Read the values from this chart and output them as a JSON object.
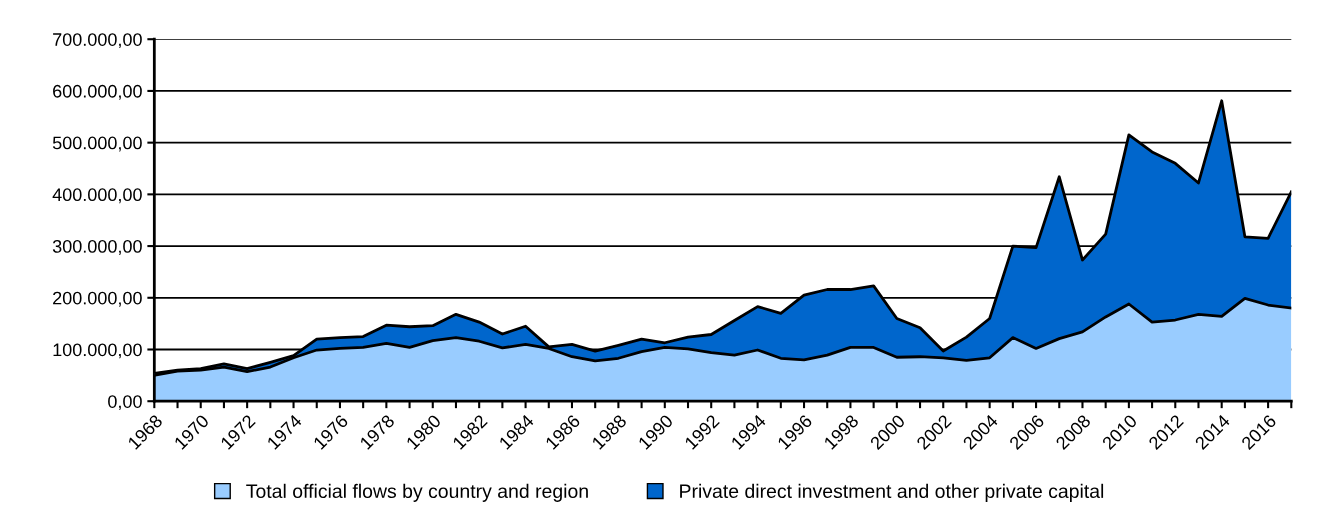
{
  "chart_data": {
    "type": "area",
    "stacked": true,
    "x": [
      1968,
      1969,
      1970,
      1971,
      1972,
      1973,
      1974,
      1975,
      1976,
      1977,
      1978,
      1979,
      1980,
      1981,
      1982,
      1983,
      1984,
      1985,
      1986,
      1987,
      1988,
      1989,
      1990,
      1991,
      1992,
      1993,
      1994,
      1995,
      1996,
      1997,
      1998,
      1999,
      2000,
      2001,
      2002,
      2003,
      2004,
      2005,
      2006,
      2007,
      2008,
      2009,
      2010,
      2011,
      2012,
      2013,
      2014,
      2015,
      2016,
      2017
    ],
    "series": [
      {
        "name": "Total official flows by country and region",
        "color": "#99ccff",
        "values": [
          50000,
          58000,
          60000,
          66000,
          57000,
          66000,
          84000,
          99000,
          102000,
          104000,
          112000,
          104000,
          117000,
          123000,
          116000,
          103000,
          110000,
          102000,
          86000,
          78000,
          83000,
          96000,
          104000,
          101000,
          94000,
          89000,
          99000,
          83000,
          80000,
          89000,
          104000,
          104000,
          85000,
          86000,
          84000,
          79000,
          84000,
          123000,
          102000,
          121000,
          134000,
          163000,
          188000,
          153000,
          157000,
          168000,
          164000,
          199000,
          186000,
          180000
        ]
      },
      {
        "name": "Private direct investment and other private capital",
        "color": "#0066cc",
        "values": [
          4000,
          2000,
          3000,
          6000,
          6000,
          9000,
          4000,
          21000,
          21000,
          21000,
          35000,
          40000,
          29000,
          45000,
          37000,
          27000,
          35000,
          3000,
          24000,
          19000,
          25000,
          24000,
          9000,
          23000,
          35000,
          67000,
          84000,
          87000,
          125000,
          127000,
          112000,
          119000,
          75000,
          56000,
          13000,
          45000,
          76000,
          177000,
          195000,
          313000,
          139000,
          160000,
          327000,
          329000,
          303000,
          254000,
          417000,
          119000,
          129000,
          225000
        ]
      }
    ],
    "xlim": [
      1968,
      2017
    ],
    "xticks": [
      1968,
      {
        "value": 1969,
        "label": null
      },
      1970,
      {
        "value": 1971,
        "label": null
      },
      1972,
      {
        "value": 1973,
        "label": null
      },
      1974,
      {
        "value": 1975,
        "label": null
      },
      1976,
      {
        "value": 1977,
        "label": null
      },
      1978,
      {
        "value": 1979,
        "label": null
      },
      1980,
      {
        "value": 1981,
        "label": null
      },
      1982,
      {
        "value": 1983,
        "label": null
      },
      1984,
      {
        "value": 1985,
        "label": null
      },
      1986,
      {
        "value": 1987,
        "label": null
      },
      1988,
      {
        "value": 1989,
        "label": null
      },
      1990,
      {
        "value": 1991,
        "label": null
      },
      1992,
      {
        "value": 1993,
        "label": null
      },
      1994,
      {
        "value": 1995,
        "label": null
      },
      1996,
      {
        "value": 1997,
        "label": null
      },
      1998,
      {
        "value": 1999,
        "label": null
      },
      2000,
      {
        "value": 2001,
        "label": null
      },
      2002,
      {
        "value": 2003,
        "label": null
      },
      2004,
      {
        "value": 2005,
        "label": null
      },
      2006,
      {
        "value": 2007,
        "label": null
      },
      2008,
      {
        "value": 2009,
        "label": null
      },
      2010,
      {
        "value": 2011,
        "label": null
      },
      2012,
      {
        "value": 2013,
        "label": null
      },
      2014,
      {
        "value": 2015,
        "label": null
      },
      2016,
      {
        "value": 2017,
        "label": null
      }
    ],
    "ylim": [
      0,
      700000
    ],
    "yticks": [
      {
        "value": 0,
        "label": "0,00"
      },
      {
        "value": 100000,
        "label": "100.000,00"
      },
      {
        "value": 200000,
        "label": "200.000,00"
      },
      {
        "value": 300000,
        "label": "300.000,00"
      },
      {
        "value": 400000,
        "label": "400.000,00"
      },
      {
        "value": 500000,
        "label": "500.000,00"
      },
      {
        "value": 600000,
        "label": "600.000,00"
      },
      {
        "value": 700000,
        "label": "700.000,00"
      }
    ],
    "grid": "y",
    "legend": "bottom"
  }
}
